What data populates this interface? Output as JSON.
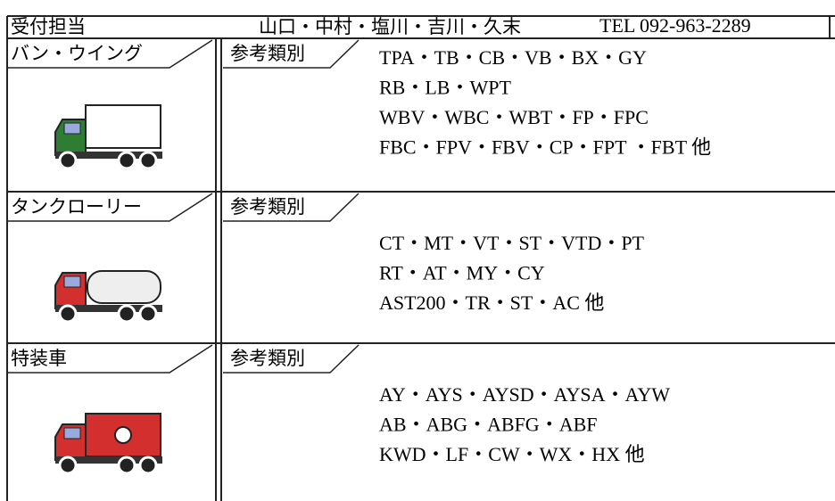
{
  "header": {
    "label": "受付担当",
    "staff": "山口・中村・塩川・吉川・久末",
    "tel": "TEL 092-963-2289"
  },
  "sections": [
    {
      "label": "バン・ウイング",
      "tag": "参考類別",
      "lines": [
        "TPA・TB・CB・VB・BX・GY",
        "RB・LB・WPT",
        "WBV・WBC・WBT・FP・FPC",
        "FBC・FPV・FBV・CP・FPT ・FBT 他"
      ]
    },
    {
      "label": "タンクローリー",
      "tag": "参考類別",
      "lines": [
        "CT・MT・VT・ST・VTD・PT",
        "RT・AT・MY・CY",
        "AST200・TR・ST・AC 他"
      ]
    },
    {
      "label": "特装車",
      "tag": "参考類別",
      "lines": [
        "AY・AYS・AYSD・AYSA・AYW",
        "AB・ABG・ABFG・ABF",
        "KWD・LF・CW・WX・HX 他"
      ]
    }
  ]
}
